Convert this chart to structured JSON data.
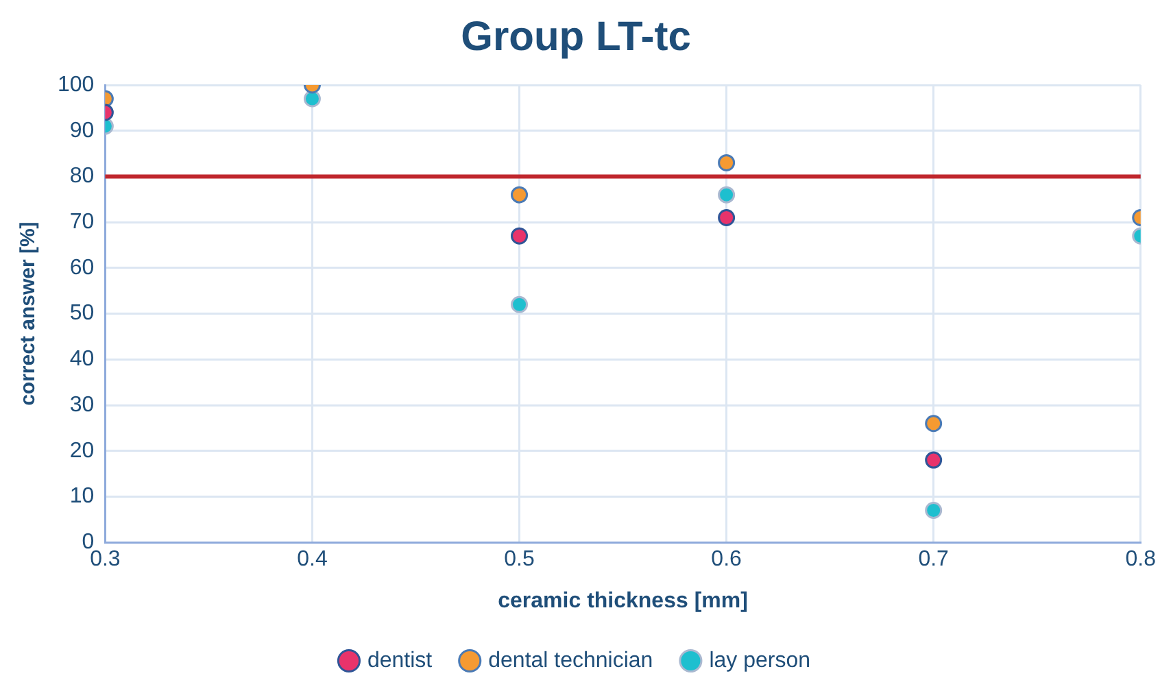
{
  "chart_data": {
    "type": "scatter",
    "title": "Group LT-tc",
    "xlabel": "ceramic thickness [mm]",
    "ylabel": "correct answer [%]",
    "x": [
      0.3,
      0.4,
      0.5,
      0.6,
      0.7,
      0.8
    ],
    "series": [
      {
        "name": "dentist",
        "color": "#e8336b",
        "values": [
          94,
          null,
          67,
          71,
          18,
          null
        ]
      },
      {
        "name": "dental technician",
        "color": "#f59a32",
        "values": [
          97,
          100,
          76,
          83,
          26,
          71
        ]
      },
      {
        "name": "lay person",
        "color": "#1ebfcf",
        "values": [
          91,
          97,
          52,
          76,
          7,
          67
        ]
      }
    ],
    "xlim": [
      0.3,
      0.8
    ],
    "xticks": [
      {
        "value": 0.3,
        "label": "0.3"
      },
      {
        "value": 0.4,
        "label": "0.4"
      },
      {
        "value": 0.5,
        "label": "0.5"
      },
      {
        "value": 0.6,
        "label": "0.6"
      },
      {
        "value": 0.7,
        "label": "0.7"
      },
      {
        "value": 0.8,
        "label": "0.8"
      }
    ],
    "ylim": [
      0,
      100
    ],
    "yticks": [
      0,
      10,
      20,
      30,
      40,
      50,
      60,
      70,
      80,
      90,
      100
    ],
    "ref_lines": [
      {
        "axis": "y",
        "value": 80,
        "color": "#c0272d"
      }
    ],
    "grid": true,
    "legend": "bottom",
    "marker": "circle"
  }
}
